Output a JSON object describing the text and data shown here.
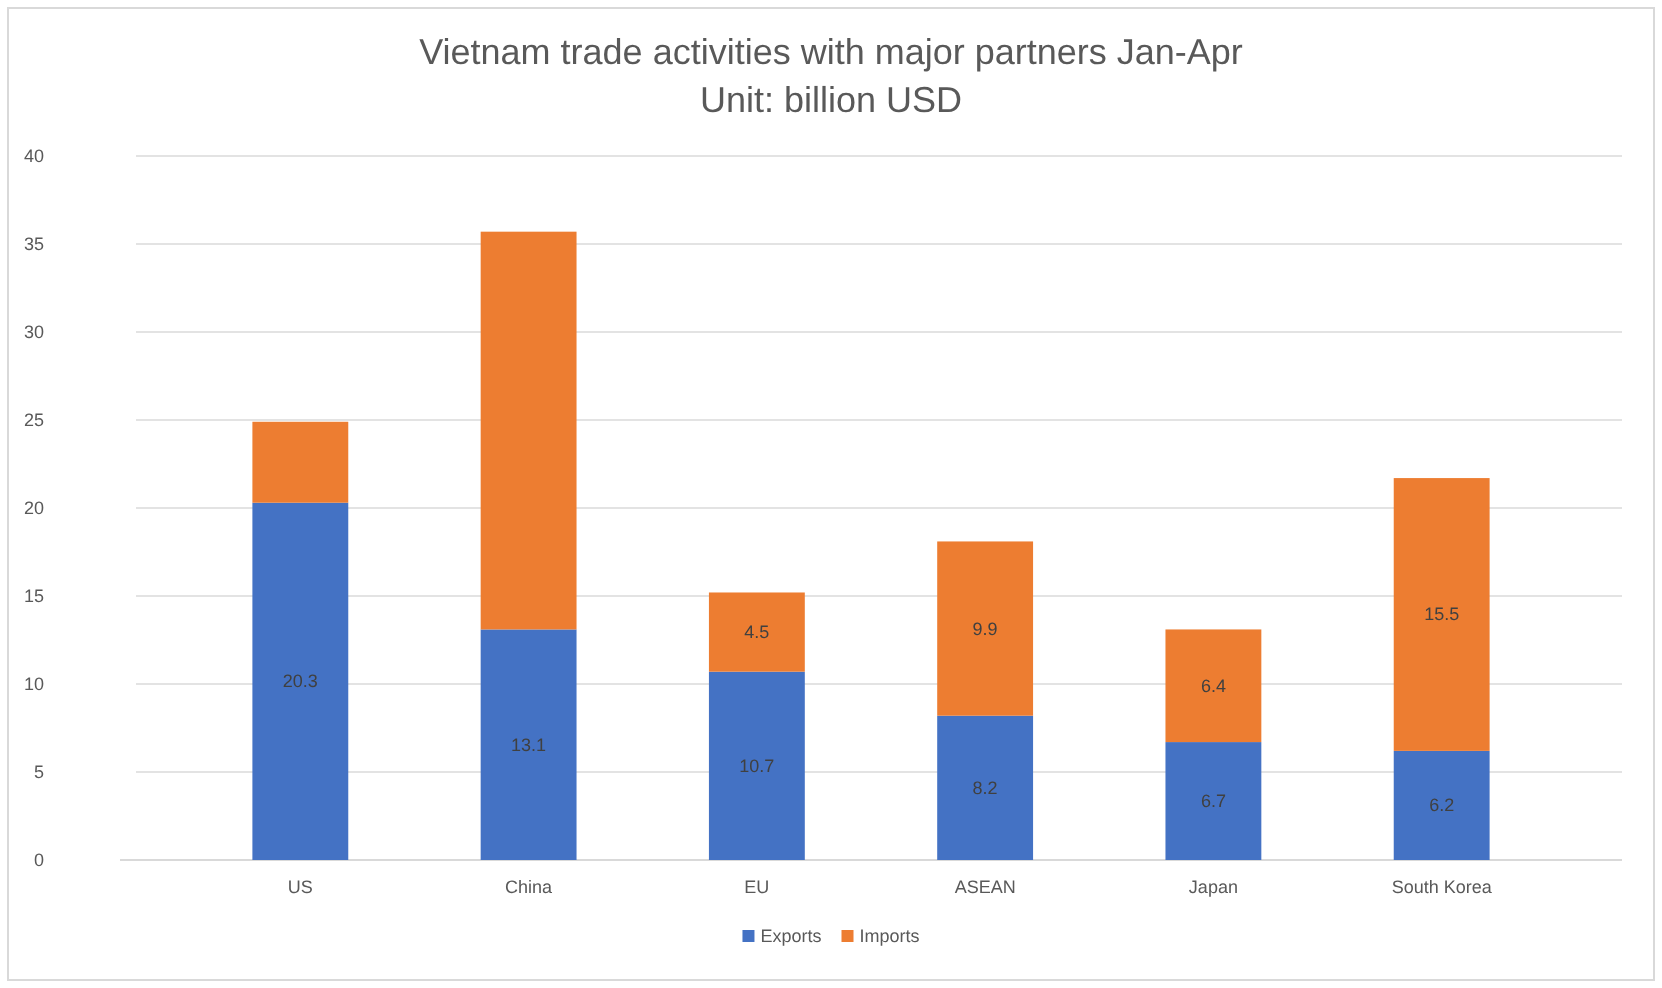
{
  "chart_data": {
    "type": "bar",
    "title": "Vietnam trade activities with major partners Jan-Apr",
    "subtitle": "Unit: billion USD",
    "categories": [
      "US",
      "China",
      "EU",
      "ASEAN",
      "Japan",
      "South Korea"
    ],
    "stacked": true,
    "series": [
      {
        "name": "Exports",
        "color": "#4472c4",
        "values": [
          20.3,
          13.1,
          10.7,
          8.2,
          6.7,
          6.2
        ],
        "value_labels": [
          "20.3",
          "13.1",
          "10.7",
          "8.2",
          "6.7",
          "6.2"
        ]
      },
      {
        "name": "Imports",
        "color": "#ed7d31",
        "values": [
          4.6,
          22.6,
          4.5,
          9.9,
          6.4,
          15.5
        ],
        "value_labels": [
          null,
          null,
          "4.5",
          "9.9",
          "6.4",
          "15.5"
        ]
      }
    ],
    "ylim": [
      0,
      40
    ],
    "yticks": [
      0,
      5,
      10,
      15,
      20,
      25,
      30,
      35,
      40
    ],
    "grid": "y",
    "legend": "bottom"
  }
}
